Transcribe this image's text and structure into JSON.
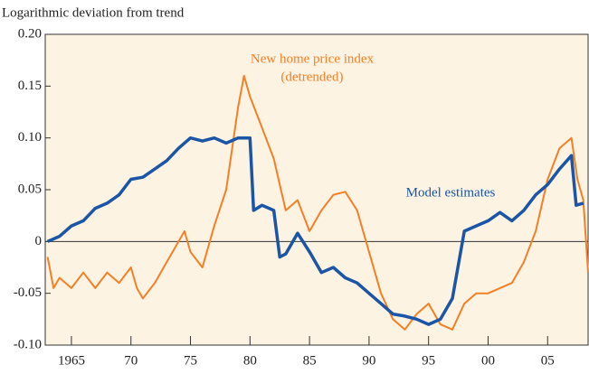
{
  "chart_data": {
    "type": "line",
    "y_axis_label": "Logarithmic deviation from trend",
    "annotations": [
      {
        "text": "New home price index",
        "color": "#f47f24"
      },
      {
        "text": "(detrended)",
        "color": "#f47f24"
      },
      {
        "text": "Model estimates",
        "color": "#1b55a5"
      }
    ],
    "series": [
      {
        "name": "New home price index (detrended)",
        "color": "#f47f24",
        "x": [
          1963,
          1963.5,
          1964,
          1965,
          1966,
          1967,
          1968,
          1969,
          1970,
          1970.5,
          1971,
          1972,
          1973,
          1974,
          1974.5,
          1975,
          1976,
          1977,
          1978,
          1979,
          1979.5,
          1980,
          1981,
          1982,
          1983,
          1984,
          1985,
          1986,
          1987,
          1988,
          1989,
          1990,
          1991,
          1992,
          1993,
          1994,
          1995,
          1996,
          1997,
          1998,
          1999,
          2000,
          2001,
          2002,
          2003,
          2004,
          2005,
          2006,
          2007,
          2007.5,
          2008,
          2008.4
        ],
        "values": [
          -0.015,
          -0.045,
          -0.035,
          -0.045,
          -0.03,
          -0.045,
          -0.03,
          -0.04,
          -0.025,
          -0.045,
          -0.055,
          -0.04,
          -0.02,
          0.0,
          0.01,
          -0.01,
          -0.025,
          0.015,
          0.05,
          0.13,
          0.16,
          0.14,
          0.11,
          0.08,
          0.03,
          0.04,
          0.01,
          0.03,
          0.045,
          0.048,
          0.03,
          -0.01,
          -0.05,
          -0.075,
          -0.085,
          -0.07,
          -0.06,
          -0.08,
          -0.085,
          -0.06,
          -0.05,
          -0.05,
          -0.045,
          -0.04,
          -0.02,
          0.01,
          0.06,
          0.09,
          0.1,
          0.06,
          0.04,
          -0.03
        ]
      },
      {
        "name": "Model estimates",
        "color": "#1b55a5",
        "x": [
          1963,
          1964,
          1965,
          1966,
          1967,
          1968,
          1969,
          1970,
          1971,
          1972,
          1973,
          1974,
          1975,
          1976,
          1977,
          1978,
          1979,
          1980,
          1980.3,
          1981,
          1982,
          1982.5,
          1983,
          1984,
          1985,
          1986,
          1987,
          1988,
          1989,
          1990,
          1991,
          1992,
          1993,
          1994,
          1995,
          1996,
          1997,
          1998,
          1999,
          2000,
          2001,
          2002,
          2003,
          2004,
          2005,
          2006,
          2007,
          2007.4,
          2008
        ],
        "values": [
          0.0,
          0.005,
          0.015,
          0.02,
          0.032,
          0.037,
          0.045,
          0.06,
          0.062,
          0.07,
          0.078,
          0.09,
          0.1,
          0.097,
          0.1,
          0.095,
          0.1,
          0.1,
          0.03,
          0.035,
          0.03,
          -0.015,
          -0.012,
          0.008,
          -0.01,
          -0.03,
          -0.025,
          -0.035,
          -0.04,
          -0.05,
          -0.06,
          -0.07,
          -0.072,
          -0.075,
          -0.08,
          -0.075,
          -0.055,
          0.01,
          0.015,
          0.02,
          0.028,
          0.02,
          0.03,
          0.045,
          0.055,
          0.07,
          0.083,
          0.035,
          0.037
        ]
      }
    ],
    "xlim": [
      1962.8,
      2008.4
    ],
    "xticks": [
      1965,
      {
        "value": 1970,
        "label": "70"
      },
      {
        "value": 1975,
        "label": "75"
      },
      {
        "value": 1980,
        "label": "80"
      },
      {
        "value": 1985,
        "label": "85"
      },
      {
        "value": 1990,
        "label": "90"
      },
      {
        "value": 1995,
        "label": "95"
      },
      {
        "value": 2000,
        "label": "00"
      },
      {
        "value": 2005,
        "label": "05"
      }
    ],
    "ylim": [
      -0.1,
      0.2
    ],
    "yticks": [
      {
        "value": -0.1,
        "label": "-0.10"
      },
      -0.05,
      0,
      0.05,
      {
        "value": 0.1,
        "label": "0.10"
      },
      0.15,
      {
        "value": 0.2,
        "label": "0.20"
      }
    ],
    "zero_line": true
  }
}
